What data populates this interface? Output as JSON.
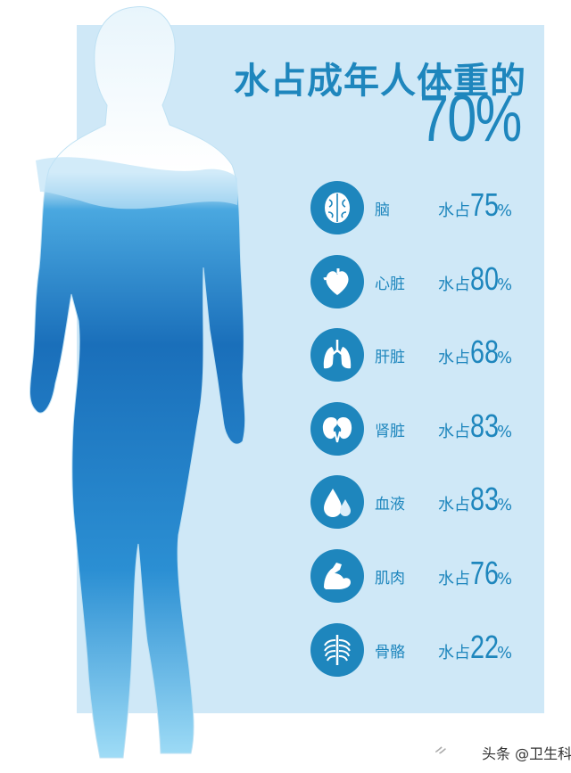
{
  "title": "水占成年人体重的",
  "headline_value": "70%",
  "organs": [
    {
      "name": "脑",
      "prefix": "水占",
      "value": "75",
      "unit": "%",
      "icon": "brain-icon"
    },
    {
      "name": "心脏",
      "prefix": "水占",
      "value": "80",
      "unit": "%",
      "icon": "heart-icon"
    },
    {
      "name": "肝脏",
      "prefix": "水占",
      "value": "68",
      "unit": "%",
      "icon": "lungs-icon"
    },
    {
      "name": "肾脏",
      "prefix": "水占",
      "value": "83",
      "unit": "%",
      "icon": "kidney-icon"
    },
    {
      "name": "血液",
      "prefix": "水占",
      "value": "83",
      "unit": "%",
      "icon": "water-drop-icon"
    },
    {
      "name": "肌肉",
      "prefix": "水占",
      "value": "76",
      "unit": "%",
      "icon": "muscle-arm-icon"
    },
    {
      "name": "骨骼",
      "prefix": "水占",
      "value": "22",
      "unit": "%",
      "icon": "ribcage-icon"
    }
  ],
  "watermark": "头条 @卫生科普",
  "colors": {
    "accent": "#1e86bd",
    "panel": "#cfe8f7",
    "body_dark": "#1670b8",
    "body_light": "#6cc3ee"
  }
}
